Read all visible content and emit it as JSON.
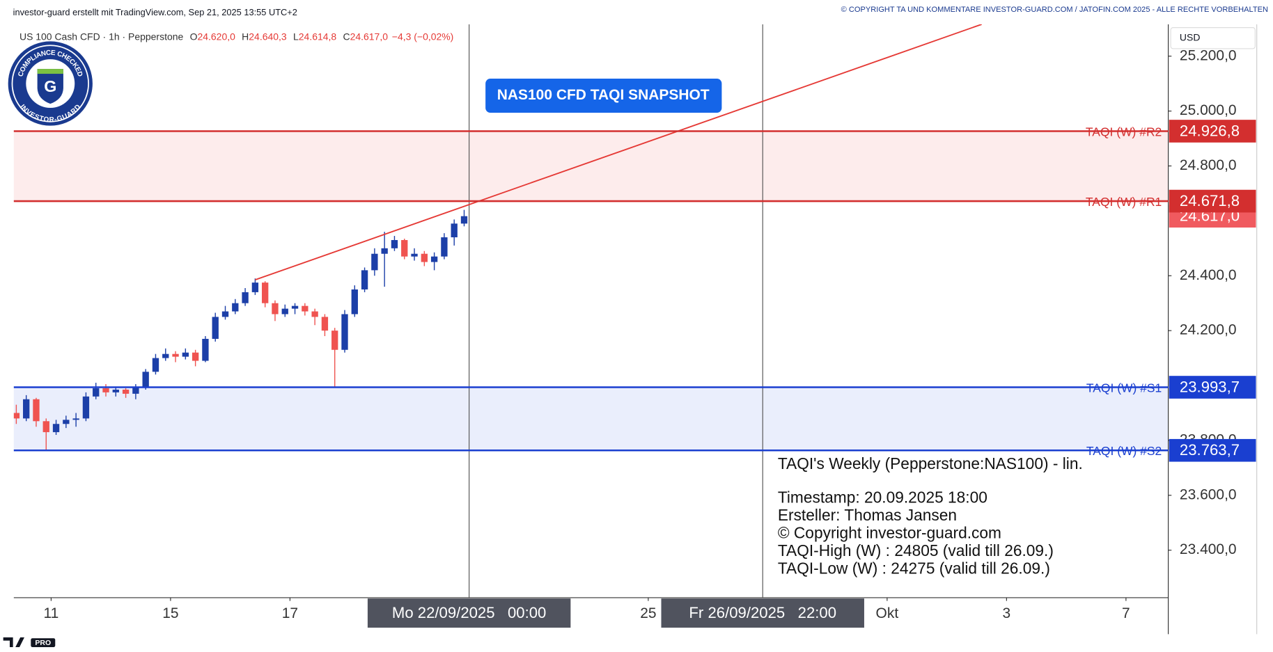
{
  "header": {
    "left": "investor-guard erstellt mit TradingView.com, Sep 21, 2025 13:55 UTC+2",
    "right": "© COPYRIGHT TA UND KOMMENTARE INVESTOR-GUARD.COM / JATOFIN.COM 2025 - ALLE RECHTE VORBEHALTEN"
  },
  "badge": {
    "top": "COMPLIANCE CHECKED",
    "bottom": "INVESTOR-GUARD",
    "logo": "G"
  },
  "brand": "PRO",
  "chart_data": {
    "type": "candlestick",
    "symbol": "US 100 Cash CFD · 1h · Pepperstone",
    "ohlc": [
      {
        "key": "O",
        "value": "24.620,0"
      },
      {
        "key": "H",
        "value": "24.640,3"
      },
      {
        "key": "L",
        "value": "24.614,8"
      },
      {
        "key": "C",
        "value": "24.617,0"
      }
    ],
    "change": "−4,3 (−0,02%)",
    "title": "NAS100 CFD TAQI SNAPSHOT",
    "currency": "USD",
    "up_color": "#1c3fa8",
    "down_color": "#ef5350",
    "x": [
      "2025-09-10 08:00",
      "2025-09-10 12:00",
      "2025-09-10 16:00",
      "2025-09-10 20:00",
      "2025-09-11 00:00",
      "2025-09-11 04:00",
      "2025-09-11 08:00",
      "2025-09-11 12:00",
      "2025-09-11 16:00",
      "2025-09-11 20:00",
      "2025-09-12 00:00",
      "2025-09-12 04:00",
      "2025-09-12 08:00",
      "2025-09-12 12:00",
      "2025-09-12 16:00",
      "2025-09-12 20:00",
      "2025-09-15 00:00",
      "2025-09-15 04:00",
      "2025-09-15 08:00",
      "2025-09-15 12:00",
      "2025-09-15 16:00",
      "2025-09-15 20:00",
      "2025-09-16 00:00",
      "2025-09-16 04:00",
      "2025-09-16 08:00",
      "2025-09-16 12:00",
      "2025-09-16 16:00",
      "2025-09-16 20:00",
      "2025-09-17 00:00",
      "2025-09-17 04:00",
      "2025-09-17 08:00",
      "2025-09-17 12:00",
      "2025-09-17 16:00",
      "2025-09-17 20:00",
      "2025-09-18 00:00",
      "2025-09-18 04:00",
      "2025-09-18 08:00",
      "2025-09-18 12:00",
      "2025-09-18 16:00",
      "2025-09-18 20:00",
      "2025-09-19 00:00",
      "2025-09-19 04:00",
      "2025-09-19 08:00",
      "2025-09-19 12:00",
      "2025-09-19 16:00",
      "2025-09-19 20:00"
    ],
    "open": [
      23900,
      23880,
      23950,
      23870,
      23830,
      23860,
      23875,
      23880,
      23960,
      23990,
      23975,
      23985,
      23970,
      23995,
      24050,
      24100,
      24115,
      24105,
      24120,
      24090,
      24170,
      24250,
      24270,
      24300,
      24340,
      24375,
      24300,
      24260,
      24280,
      24290,
      24270,
      24250,
      24200,
      24130,
      24260,
      24350,
      24420,
      24480,
      24500,
      24530,
      24470,
      24480,
      24450,
      24470,
      24540,
      24590
    ],
    "high": [
      23930,
      23965,
      23955,
      23880,
      23875,
      23890,
      23900,
      23975,
      24010,
      24005,
      23995,
      23990,
      24005,
      24060,
      24115,
      24135,
      24125,
      24135,
      24130,
      24180,
      24265,
      24290,
      24315,
      24355,
      24390,
      24380,
      24310,
      24295,
      24300,
      24300,
      24280,
      24260,
      24210,
      24275,
      24365,
      24430,
      24500,
      24560,
      24545,
      24535,
      24500,
      24490,
      24485,
      24555,
      24605,
      24640
    ],
    "low": [
      23860,
      23870,
      23850,
      23765,
      23820,
      23845,
      23850,
      23870,
      23950,
      23960,
      23960,
      23955,
      23950,
      23985,
      24040,
      24090,
      24085,
      24095,
      24070,
      24085,
      24160,
      24240,
      24260,
      24290,
      24330,
      24285,
      24235,
      24250,
      24260,
      24255,
      24220,
      24180,
      23993,
      24120,
      24250,
      24340,
      24400,
      24360,
      24490,
      24460,
      24455,
      24435,
      24420,
      24460,
      24510,
      24580
    ],
    "close": [
      23880,
      23950,
      23870,
      23830,
      23860,
      23875,
      23880,
      23960,
      23990,
      23975,
      23985,
      23970,
      23995,
      24050,
      24100,
      24115,
      24105,
      24120,
      24090,
      24170,
      24250,
      24270,
      24300,
      24340,
      24375,
      24300,
      24260,
      24280,
      24290,
      24270,
      24250,
      24200,
      24130,
      24260,
      24350,
      24420,
      24480,
      24500,
      24530,
      24470,
      24480,
      24450,
      24470,
      24540,
      24590,
      24617
    ],
    "xlim": [
      "2025-09-10 09:00",
      "2025-10-07 17:00"
    ],
    "xticks": [
      {
        "value": "2025-09-11 00:00",
        "label": "11"
      },
      {
        "value": "2025-09-15 00:00",
        "label": "15"
      },
      {
        "value": "2025-09-17 00:00",
        "label": "17"
      },
      {
        "value": "2025-09-25 00:00",
        "label": "25"
      },
      {
        "value": "2025-10-01 00:00",
        "label": "Okt"
      },
      {
        "value": "2025-10-03 00:00",
        "label": "3"
      },
      {
        "value": "2025-10-07 00:00",
        "label": "7"
      }
    ],
    "ylim": [
      23227,
      25316
    ],
    "yticks": [
      {
        "value": 25200,
        "label": "25.200,0"
      },
      {
        "value": 25000,
        "label": "25.000,0"
      },
      {
        "value": 24800,
        "label": "24.800,0"
      },
      {
        "value": 24400,
        "label": "24.400,0"
      },
      {
        "value": 24200,
        "label": "24.200,0"
      },
      {
        "value": 23800,
        "label": "23.800,0"
      },
      {
        "value": 23600,
        "label": "23.600,0"
      },
      {
        "value": 23400,
        "label": "23.400,0"
      }
    ],
    "markers": [
      {
        "x": "2025-09-22 00:00",
        "label": "Mo 22/09/2025   00:00"
      },
      {
        "x": "2025-09-26 22:00",
        "label": "Fr 26/09/2025   22:00"
      }
    ],
    "resistance": {
      "color": "#d32f2f",
      "zone_color": "#fdecec",
      "levels": [
        {
          "name": "TAQI (W) #R2",
          "value": 24926.8,
          "label": "24.926,8"
        },
        {
          "name": "TAQI (W) #R1",
          "value": 24671.8,
          "label": "24.671,8"
        }
      ]
    },
    "support": {
      "color": "#1a3fd0",
      "zone_color": "#eaeefc",
      "levels": [
        {
          "name": "TAQI (W) #S1",
          "value": 23993.7,
          "label": "23.993,7"
        },
        {
          "name": "TAQI (W) #S2",
          "value": 23763.7,
          "label": "23.763,7"
        }
      ]
    },
    "last_price": {
      "value": 24617,
      "label": "24.617,0",
      "color": "#f05a5f"
    },
    "trendline": {
      "color": "#e53935",
      "from": {
        "x": "2025-09-16 10:00",
        "y": 24385
      },
      "to": {
        "x": "2025-10-02 14:00",
        "y": 25316
      }
    },
    "note": [
      "TAQI's Weekly (Pepperstone:NAS100) - lin.",
      "Timestamp: 20.09.2025 18:00",
      "Ersteller: Thomas Jansen",
      "© Copyright investor-guard.com",
      "TAQI-High (W) : 24805 (valid till 26.09.)",
      "TAQI-Low (W) : 24275 (valid till 26.09.)"
    ]
  }
}
